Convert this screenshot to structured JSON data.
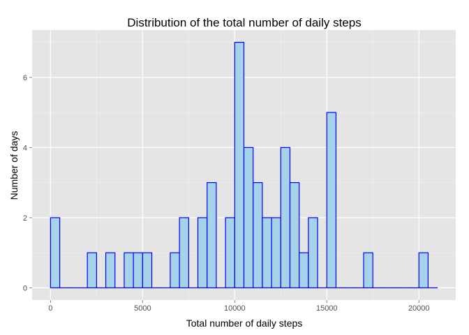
{
  "chart_data": {
    "type": "bar",
    "title": "Distribution of the total number of daily steps",
    "xlabel": "Total number of daily steps",
    "ylabel": "Number of days",
    "xlim": [
      -1000,
      22000
    ],
    "ylim": [
      -0.35,
      7.35
    ],
    "xticks": [
      0,
      5000,
      10000,
      15000,
      20000
    ],
    "xtick_labels": [
      "0",
      "5000",
      "10000",
      "15000",
      "20000"
    ],
    "yticks": [
      0,
      2,
      4,
      6
    ],
    "ytick_labels": [
      "0",
      "2",
      "4",
      "6"
    ],
    "x_minor_breaks": [
      2500,
      7500,
      12500,
      17500
    ],
    "y_minor_breaks": [
      1,
      3,
      5,
      7
    ],
    "grid": true,
    "bin_width": 500,
    "bins_start": [
      0,
      500,
      1000,
      1500,
      2000,
      2500,
      3000,
      3500,
      4000,
      4500,
      5000,
      5500,
      6000,
      6500,
      7000,
      7500,
      8000,
      8500,
      9000,
      9500,
      10000,
      10500,
      11000,
      11500,
      12000,
      12500,
      13000,
      13500,
      14000,
      14500,
      15000,
      15500,
      16000,
      16500,
      17000,
      17500,
      18000,
      18500,
      19000,
      19500,
      20000,
      20500
    ],
    "values": [
      2,
      0,
      0,
      0,
      1,
      0,
      1,
      0,
      1,
      1,
      1,
      0,
      0,
      1,
      2,
      0,
      2,
      3,
      0,
      2,
      7,
      4,
      3,
      2,
      2,
      4,
      3,
      1,
      2,
      0,
      5,
      0,
      0,
      0,
      1,
      0,
      0,
      0,
      0,
      0,
      1,
      0
    ],
    "colors": {
      "panel": "#e5e5e5",
      "bar_fill": "#a6d3ea",
      "bar_stroke": "#0000ff",
      "grid_major": "#ffffff",
      "grid_minor": "#f2f2f2",
      "tick": "#808080"
    }
  }
}
